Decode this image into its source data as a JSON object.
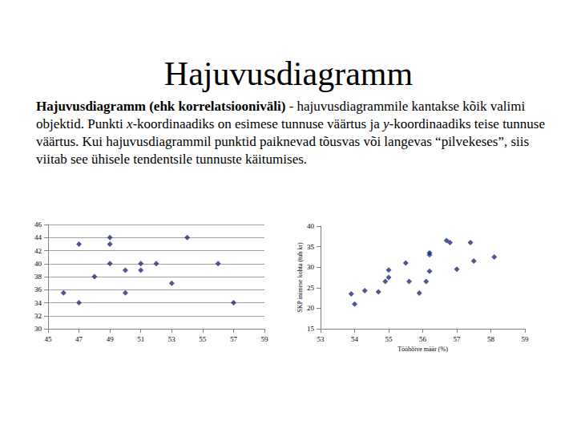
{
  "title": "Hajuvusdiagramm",
  "text": [
    {
      "text": "Hajuvusdiagramm (ehk korrelatsiooniväli)",
      "bold": true
    },
    {
      "text": " - hajuvusdiagrammile kantakse kõik valimi objektid. Punkti "
    },
    {
      "text": "x",
      "italic": true
    },
    {
      "text": "-koordinaadiks on esimese tunnuse väärtus ja "
    },
    {
      "text": "y",
      "italic": true
    },
    {
      "text": "-koordinaadiks teise tunnuse väärtus. Kui hajuvusdiagrammil punktid paiknevad tõusvas või langevas “pilvekeses”, siis viitab see ühisele tendentsile tunnuste käitumises."
    }
  ],
  "chart_data": [
    {
      "type": "scatter",
      "color": "#1f2d7a",
      "marker": "diamond",
      "grid": true,
      "x": [
        46,
        47,
        47,
        48,
        49,
        49,
        49,
        50,
        50,
        51,
        51,
        52,
        53,
        54,
        56,
        57
      ],
      "values": [
        35.5,
        43,
        34,
        38,
        44,
        43,
        40,
        39,
        35.5,
        40,
        39,
        40,
        37,
        44,
        40,
        34
      ],
      "xlim": [
        45,
        59
      ],
      "xticks": [
        45,
        47,
        49,
        51,
        53,
        55,
        57,
        59
      ],
      "ylim": [
        30,
        46
      ],
      "yticks": [
        30,
        32,
        34,
        36,
        38,
        40,
        42,
        44,
        46
      ]
    },
    {
      "type": "scatter",
      "color": "#1f2d7a",
      "marker": "diamond",
      "grid": false,
      "x_label": "Tööhõive määr (%)",
      "y_label": "SKP inimese kohta (tuh kr)",
      "x": [
        53.9,
        54,
        54.3,
        54.7,
        54.9,
        55,
        55,
        55.5,
        55.6,
        55.9,
        56.1,
        56.2,
        56.2,
        56.2,
        56.7,
        56.8,
        57,
        57.4,
        57.5,
        58.1
      ],
      "values": [
        23.5,
        21,
        24.3,
        24,
        26.5,
        27.5,
        29.3,
        31,
        26.5,
        23.7,
        26.5,
        29,
        33,
        33.5,
        36.5,
        36,
        29.5,
        36,
        31.5,
        32.5
      ],
      "xlim": [
        53,
        59
      ],
      "xticks": [
        53,
        54,
        55,
        56,
        57,
        58,
        59
      ],
      "ylim": [
        15,
        40
      ],
      "yticks": [
        15,
        20,
        25,
        30,
        35,
        40
      ]
    }
  ]
}
